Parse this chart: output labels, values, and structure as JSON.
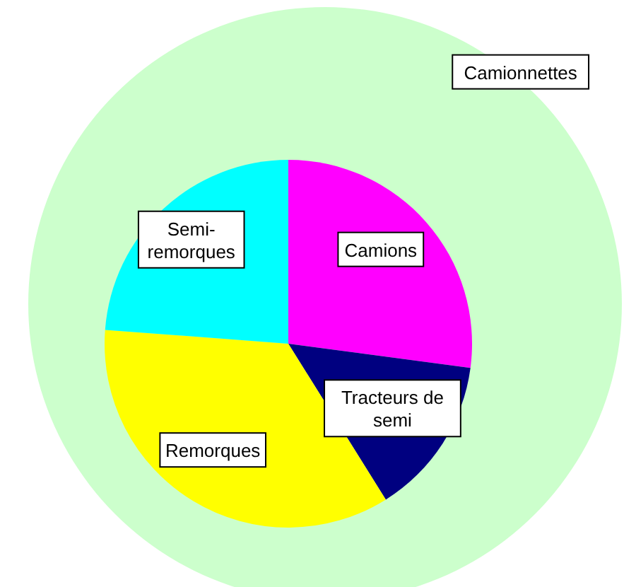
{
  "chart_data": [
    {
      "type": "pie",
      "categories": [
        "Camionnettes"
      ],
      "values": [
        100
      ],
      "colors": [
        "#ccffcc"
      ]
    },
    {
      "type": "pie",
      "categories": [
        "Camions",
        "Tracteurs de semi",
        "Remorques",
        "Semi-remorques"
      ],
      "values": [
        27.1,
        14.0,
        35.1,
        23.8
      ],
      "colors": [
        "#ff00ff",
        "#000080",
        "#ffff00",
        "#00ffff"
      ]
    }
  ]
}
